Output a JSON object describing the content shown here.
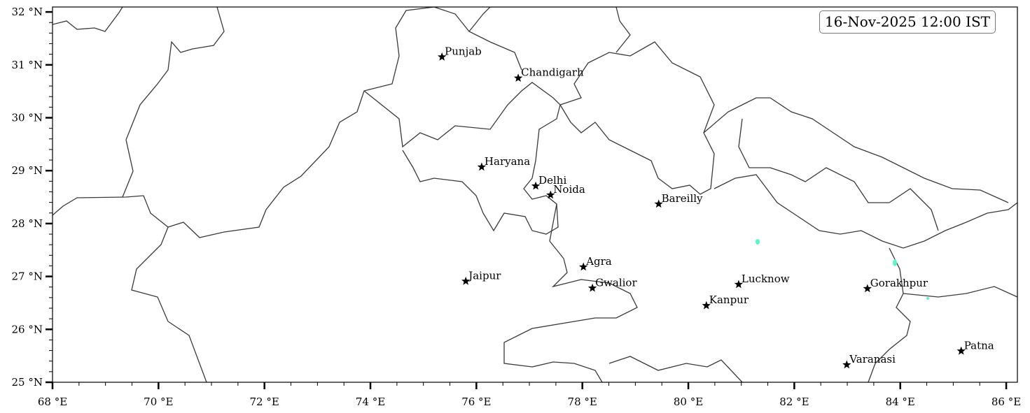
{
  "map": {
    "timestamp": "16-Nov-2025 12:00 IST",
    "extent": {
      "lon": [
        68,
        86.2
      ],
      "lat": [
        25,
        32.1
      ]
    },
    "x_ticks": [
      {
        "value": 68,
        "label": "68 °E"
      },
      {
        "value": 70,
        "label": "70 °E"
      },
      {
        "value": 72,
        "label": "72 °E"
      },
      {
        "value": 74,
        "label": "74 °E"
      },
      {
        "value": 76,
        "label": "76 °E"
      },
      {
        "value": 78,
        "label": "78 °E"
      },
      {
        "value": 80,
        "label": "80 °E"
      },
      {
        "value": 82,
        "label": "82 °E"
      },
      {
        "value": 84,
        "label": "84 °E"
      },
      {
        "value": 86,
        "label": "86 °E"
      }
    ],
    "y_ticks": [
      {
        "value": 25,
        "label": "25 °N"
      },
      {
        "value": 26,
        "label": "26 °N"
      },
      {
        "value": 27,
        "label": "27 °N"
      },
      {
        "value": 28,
        "label": "28 °N"
      },
      {
        "value": 29,
        "label": "29 °N"
      },
      {
        "value": 30,
        "label": "30 °N"
      },
      {
        "value": 31,
        "label": "31 °N"
      },
      {
        "value": 32,
        "label": "32 °N"
      }
    ],
    "marker_icon": "star-icon",
    "boundary_color": "#3a3a3a",
    "overlay_color": "#5ff5c8",
    "cities": [
      {
        "name": "Punjab",
        "lon": 75.35,
        "lat": 31.15
      },
      {
        "name": "Chandigarh",
        "lon": 76.79,
        "lat": 30.75
      },
      {
        "name": "Haryana",
        "lon": 76.1,
        "lat": 29.07
      },
      {
        "name": "Delhi",
        "lon": 77.12,
        "lat": 28.71
      },
      {
        "name": "Noida",
        "lon": 77.4,
        "lat": 28.54
      },
      {
        "name": "Bareilly",
        "lon": 79.44,
        "lat": 28.37
      },
      {
        "name": "Agra",
        "lon": 78.02,
        "lat": 27.18
      },
      {
        "name": "Jaipur",
        "lon": 75.8,
        "lat": 26.91
      },
      {
        "name": "Gwalior",
        "lon": 78.19,
        "lat": 26.78
      },
      {
        "name": "Lucknow",
        "lon": 80.95,
        "lat": 26.85
      },
      {
        "name": "Kanpur",
        "lon": 80.34,
        "lat": 26.45
      },
      {
        "name": "Gorakhpur",
        "lon": 83.38,
        "lat": 26.77
      },
      {
        "name": "Patna",
        "lon": 85.15,
        "lat": 25.59
      },
      {
        "name": "Varanasi",
        "lon": 82.99,
        "lat": 25.33
      }
    ]
  }
}
